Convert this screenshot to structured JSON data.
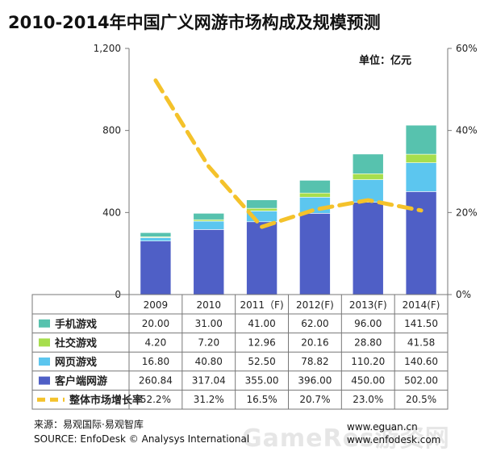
{
  "title": "2010-2014年中国广义网游市场构成及规模预测",
  "unit": "单位：亿元",
  "source_cn": "来源：易观国际·易观智库",
  "source_en": "SOURCE: EnfoDesk © Analysys International",
  "url1": "www.eguan.cn",
  "url2": "www.enfodesk.com",
  "watermark": "GameRes游资网",
  "chart_data": {
    "type": "bar",
    "stacked": true,
    "categories": [
      "2009",
      "2010",
      "2011（F)",
      "2012(F)",
      "2013(F)",
      "2014(F)"
    ],
    "series": [
      {
        "name": "客户端网游",
        "color": "#4f5fc6",
        "values": [
          260.84,
          317.04,
          355.0,
          396.0,
          450.0,
          502.0
        ]
      },
      {
        "name": "网页游戏",
        "color": "#5cc6ef",
        "values": [
          16.8,
          40.8,
          52.5,
          78.82,
          110.2,
          140.6
        ]
      },
      {
        "name": "社交游戏",
        "color": "#a7de4d",
        "values": [
          4.2,
          7.2,
          12.96,
          20.16,
          28.8,
          41.58
        ]
      },
      {
        "name": "手机游戏",
        "color": "#57c2ae",
        "values": [
          20.0,
          31.0,
          41.0,
          62.0,
          96.0,
          141.5
        ]
      }
    ],
    "line": {
      "name": "整体市场增长率",
      "color": "#f4c22b",
      "values": [
        52.2,
        31.2,
        16.5,
        20.7,
        23.0,
        20.5
      ],
      "labels": [
        "52.2%",
        "31.2%",
        "16.5%",
        "20.7%",
        "23.0%",
        "20.5%"
      ]
    },
    "table_rows": [
      {
        "name": "手机游戏",
        "color": "#57c2ae",
        "kind": "box",
        "cells": [
          "20.00",
          "31.00",
          "41.00",
          "62.00",
          "96.00",
          "141.50"
        ]
      },
      {
        "name": "社交游戏",
        "color": "#a7de4d",
        "kind": "box",
        "cells": [
          "4.20",
          "7.20",
          "12.96",
          "20.16",
          "28.80",
          "41.58"
        ]
      },
      {
        "name": "网页游戏",
        "color": "#5cc6ef",
        "kind": "box",
        "cells": [
          "16.80",
          "40.80",
          "52.50",
          "78.82",
          "110.20",
          "140.60"
        ]
      },
      {
        "name": "客户端网游",
        "color": "#4f5fc6",
        "kind": "box",
        "cells": [
          "260.84",
          "317.04",
          "355.00",
          "396.00",
          "450.00",
          "502.00"
        ]
      },
      {
        "name": "整体市场增长率",
        "color": "#f4c22b",
        "kind": "dash",
        "cells": [
          "52.2%",
          "31.2%",
          "16.5%",
          "20.7%",
          "23.0%",
          "20.5%"
        ]
      }
    ],
    "y_left": {
      "min": 0,
      "max": 1200,
      "ticks": [
        "0",
        "400",
        "800",
        "1,200"
      ],
      "tick_values": [
        0,
        400,
        800,
        1200
      ]
    },
    "y_right": {
      "min": 0,
      "max": 60,
      "ticks": [
        "0%",
        "20%",
        "40%",
        "60%"
      ],
      "tick_values": [
        0,
        20,
        40,
        60
      ]
    },
    "legend": "table-left"
  }
}
